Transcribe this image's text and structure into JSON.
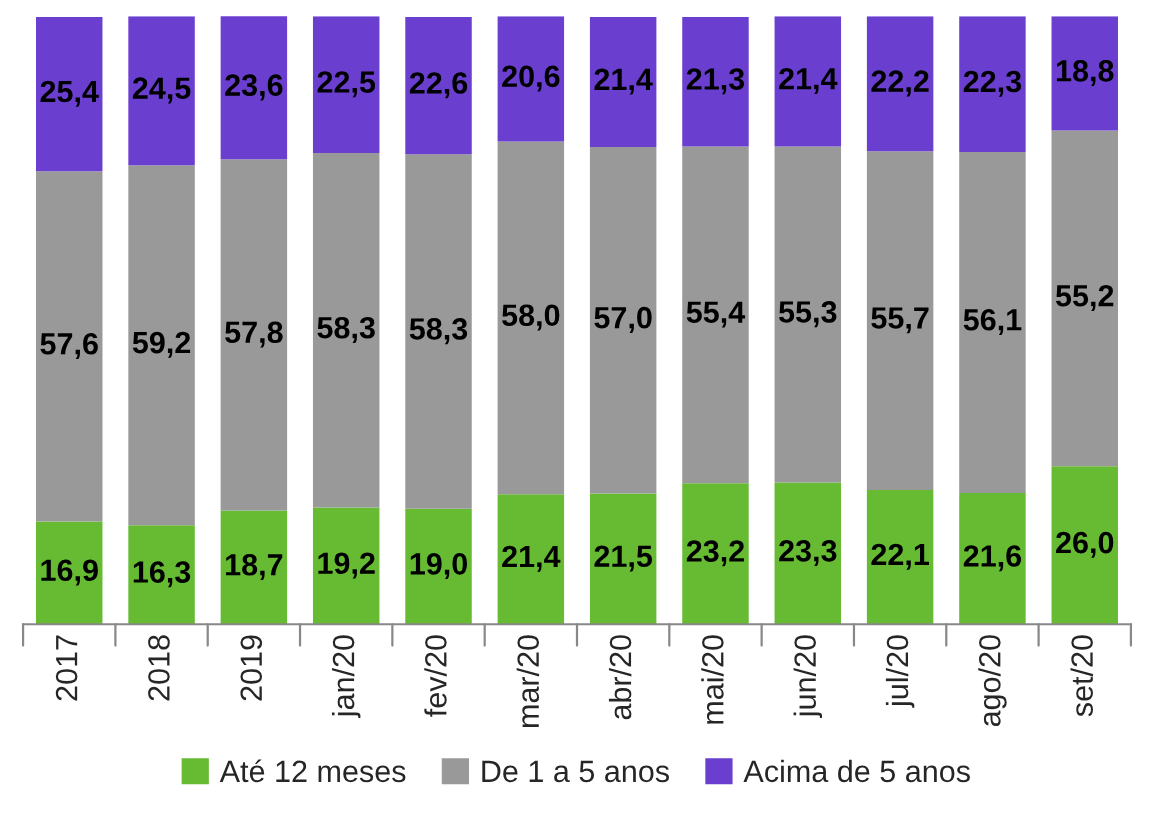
{
  "chart_data": {
    "type": "bar",
    "stacked": true,
    "legend": "bottom",
    "grid": false,
    "ylim": [
      0,
      100
    ],
    "tick_labels": "x",
    "categories": [
      "2017",
      "2018",
      "2019",
      "jan/20",
      "fev/20",
      "mar/20",
      "abr/20",
      "mai/20",
      "jun/20",
      "jul/20",
      "ago/20",
      "set/20"
    ],
    "series": [
      {
        "name": "Até 12 meses",
        "color": "#66bb33",
        "values": [
          16.9,
          16.3,
          18.7,
          19.2,
          19.0,
          21.4,
          21.5,
          23.2,
          23.3,
          22.1,
          21.6,
          26.0
        ],
        "value_labels": [
          "16,9",
          "16,3",
          "18,7",
          "19,2",
          "19,0",
          "21,4",
          "21,5",
          "23,2",
          "23,3",
          "22,1",
          "21,6",
          "26,0"
        ]
      },
      {
        "name": "De 1 a 5 anos",
        "color": "#999999",
        "values": [
          57.6,
          59.2,
          57.8,
          58.3,
          58.3,
          58.0,
          57.0,
          55.4,
          55.3,
          55.7,
          56.1,
          55.2
        ],
        "value_labels": [
          "57,6",
          "59,2",
          "57,8",
          "58,3",
          "58,3",
          "58,0",
          "57,0",
          "55,4",
          "55,3",
          "55,7",
          "56,1",
          "55,2"
        ]
      },
      {
        "name": "Acima de 5 anos",
        "color": "#6a3fcf",
        "values": [
          25.4,
          24.5,
          23.6,
          22.5,
          22.6,
          20.6,
          21.4,
          21.3,
          21.4,
          22.2,
          22.3,
          18.8
        ],
        "value_labels": [
          "25,4",
          "24,5",
          "23,6",
          "22,5",
          "22,6",
          "20,6",
          "21,4",
          "21,3",
          "21,4",
          "22,2",
          "22,3",
          "18,8"
        ]
      }
    ]
  }
}
